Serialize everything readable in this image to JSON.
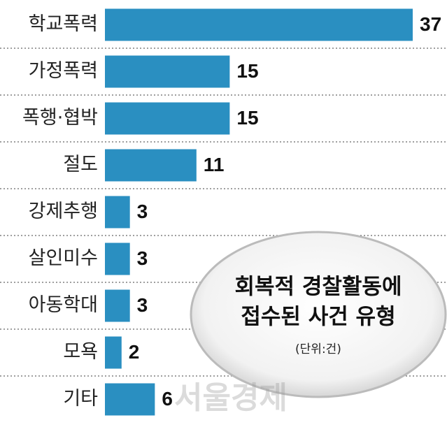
{
  "chart_data": {
    "type": "bar",
    "orientation": "horizontal",
    "title": [
      "회복적 경찰활동에",
      "접수된 사건 유형"
    ],
    "subtitle": "(단위:건)",
    "categories": [
      "학교폭력",
      "가정폭력",
      "폭행·협박",
      "절도",
      "강제추행",
      "살인미수",
      "아동학대",
      "모욕",
      "기타"
    ],
    "values": [
      37,
      15,
      15,
      11,
      3,
      3,
      3,
      2,
      6
    ],
    "color": "#2a8fc1",
    "watermark": "서울경제"
  }
}
